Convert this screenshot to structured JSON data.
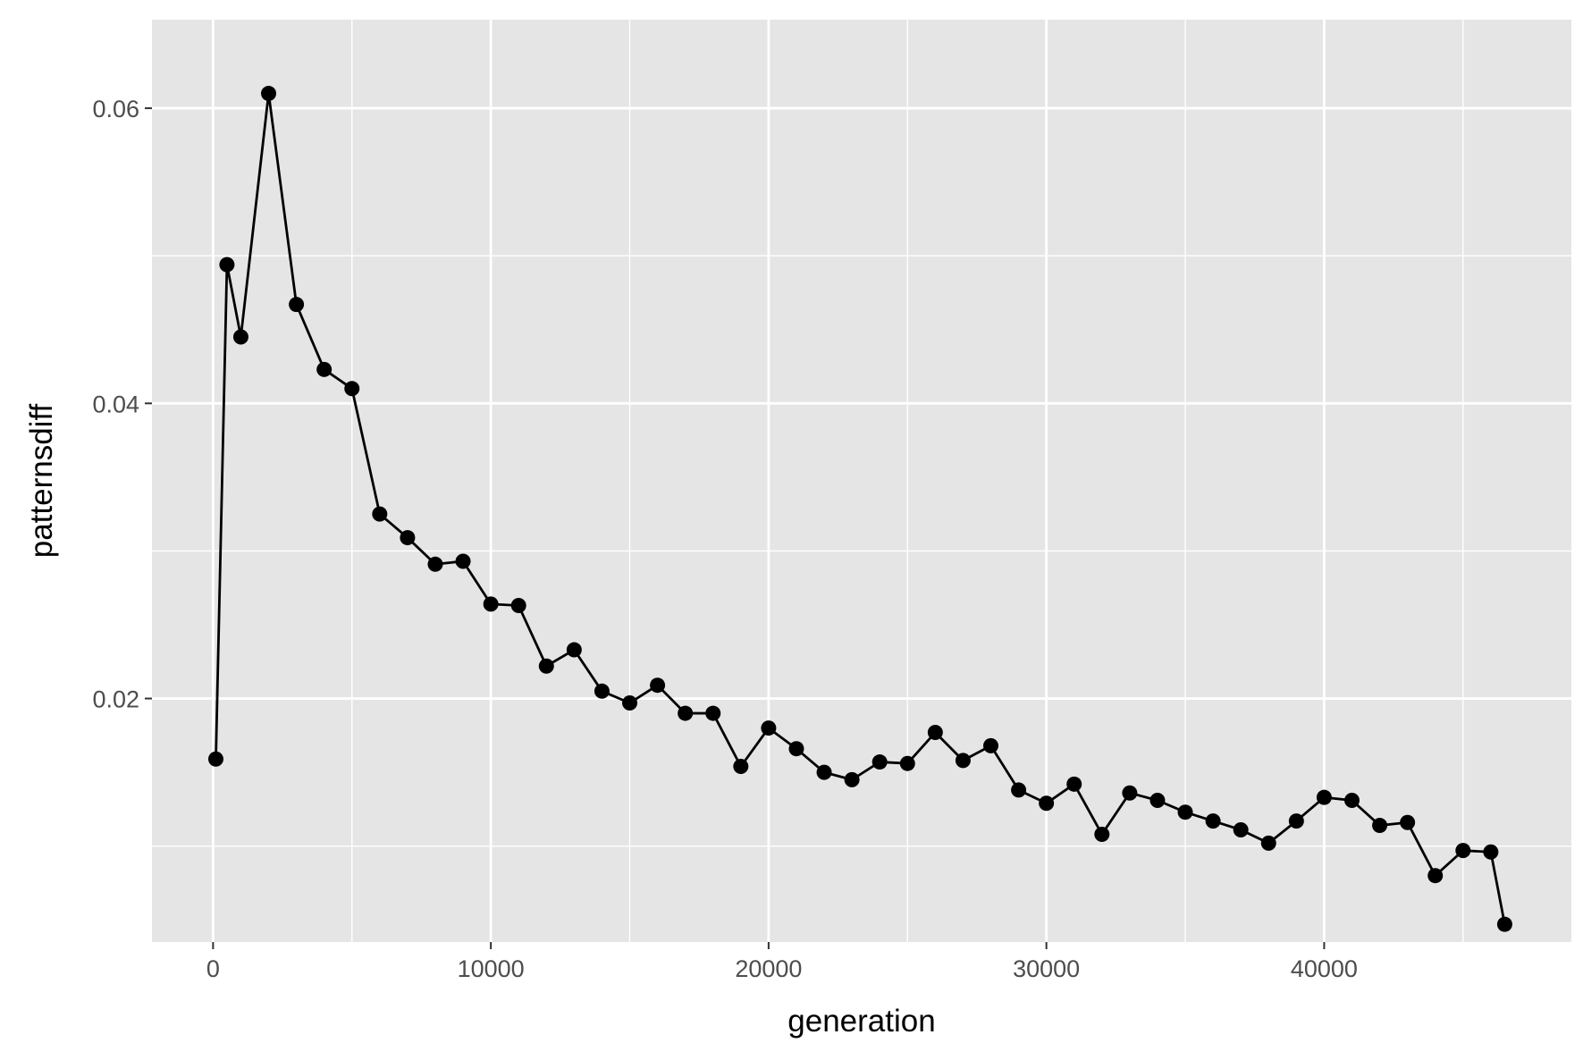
{
  "chart_data": {
    "type": "line",
    "title": "",
    "xlabel": "generation",
    "ylabel": "patternsdiff",
    "xlim": [
      -2200,
      48900
    ],
    "ylim": [
      0.0035,
      0.066
    ],
    "xticks": [
      0,
      10000,
      20000,
      30000,
      40000
    ],
    "xtick_labels": [
      "0",
      "10000",
      "20000",
      "30000",
      "40000"
    ],
    "yticks": [
      0.02,
      0.04,
      0.06
    ],
    "ytick_labels": [
      "0.02",
      "0.04",
      "0.06"
    ],
    "x_minor_gridlines": [
      5000,
      15000,
      25000,
      35000,
      45000
    ],
    "y_minor_gridlines": [
      0.01,
      0.03,
      0.05
    ],
    "grid": true,
    "legend": "none",
    "colors": {
      "panel_background": "#e5e5e5",
      "gridline": "#ffffff",
      "series": "#000000",
      "tick_text": "#4d4d4d",
      "axis_title": "#000000"
    },
    "series": [
      {
        "x": [
          100,
          500,
          1000,
          2000,
          3000,
          4000,
          5000,
          6000,
          7000,
          8000,
          9000,
          10000,
          11000,
          12000,
          13000,
          14000,
          15000,
          16000,
          17000,
          18000,
          19000,
          20000,
          21000,
          22000,
          23000,
          24000,
          25000,
          26000,
          27000,
          28000,
          29000,
          30000,
          31000,
          32000,
          33000,
          34000,
          35000,
          36000,
          37000,
          38000,
          39000,
          40000,
          41000,
          42000,
          43000,
          44000,
          45000,
          46000,
          46500
        ],
        "y": [
          0.0159,
          0.0494,
          0.0445,
          0.061,
          0.0467,
          0.0423,
          0.041,
          0.0325,
          0.0309,
          0.0291,
          0.0293,
          0.0264,
          0.0263,
          0.0222,
          0.0233,
          0.0205,
          0.0197,
          0.0209,
          0.019,
          0.019,
          0.0154,
          0.018,
          0.0166,
          0.015,
          0.0145,
          0.0157,
          0.0156,
          0.0177,
          0.0158,
          0.0168,
          0.0138,
          0.0129,
          0.0142,
          0.0108,
          0.0136,
          0.0131,
          0.0123,
          0.0117,
          0.0111,
          0.0102,
          0.0117,
          0.0133,
          0.0131,
          0.0114,
          0.0116,
          0.008,
          0.0097,
          0.0096,
          0.0047
        ]
      }
    ]
  }
}
